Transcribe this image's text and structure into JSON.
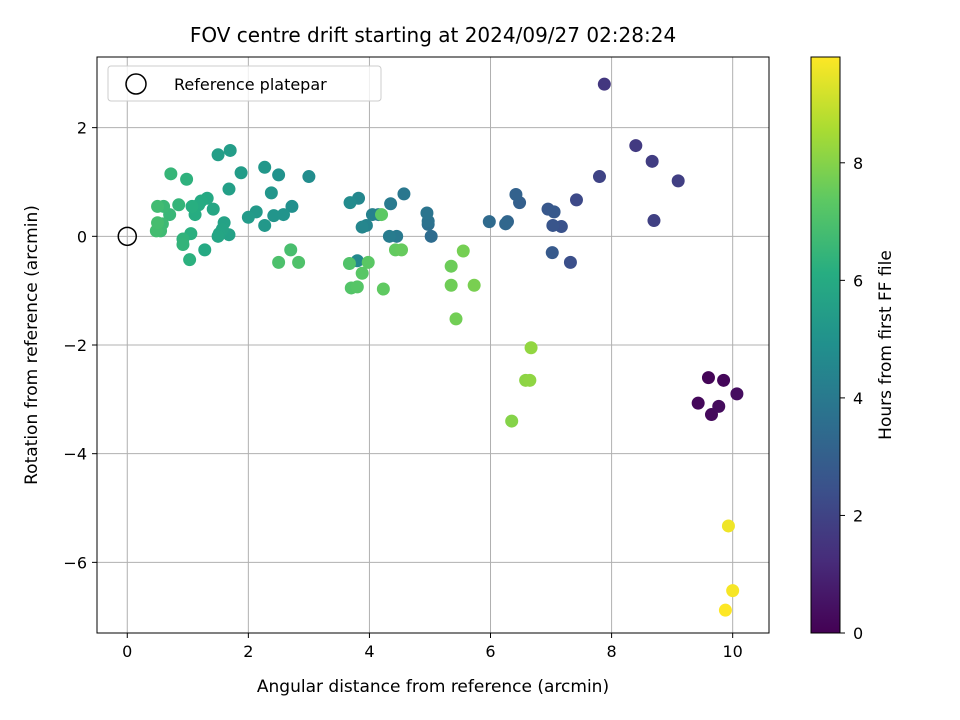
{
  "chart_data": {
    "type": "scatter",
    "title": "FOV centre drift starting at 2024/09/27 02:28:24",
    "xlabel": "Angular distance from reference (arcmin)",
    "ylabel": "Rotation from reference (arcmin)",
    "xlim": [
      -0.5,
      10.6
    ],
    "ylim": [
      -7.3,
      3.3
    ],
    "xticks": [
      0,
      2,
      4,
      6,
      8,
      10
    ],
    "yticks": [
      2,
      0,
      -2,
      -4,
      -6
    ],
    "xtick_labels": [
      "0",
      "2",
      "4",
      "6",
      "8",
      "10"
    ],
    "ytick_labels": [
      "2",
      "0",
      "−2",
      "−4",
      "−6"
    ],
    "grid": true,
    "legend": {
      "label": "Reference platepar",
      "placement": "top-left",
      "marker": "open-circle"
    },
    "reference_point": {
      "x": 0,
      "y": 0
    },
    "colorbar": {
      "label": "Hours from first FF file",
      "colormap": "viridis",
      "range": [
        0,
        9.8
      ],
      "ticks": [
        0,
        2,
        4,
        6,
        8
      ],
      "tick_labels": [
        "0",
        "2",
        "4",
        "6",
        "8"
      ]
    },
    "points": [
      {
        "x": 9.6,
        "y": -2.6,
        "c": 0.1
      },
      {
        "x": 9.85,
        "y": -2.65,
        "c": 0.15
      },
      {
        "x": 9.43,
        "y": -3.07,
        "c": 0.2
      },
      {
        "x": 9.65,
        "y": -3.28,
        "c": 0.25
      },
      {
        "x": 9.77,
        "y": -3.13,
        "c": 0.3
      },
      {
        "x": 10.07,
        "y": -2.9,
        "c": 0.35
      },
      {
        "x": 7.88,
        "y": 2.8,
        "c": 1.6
      },
      {
        "x": 8.4,
        "y": 1.67,
        "c": 1.7
      },
      {
        "x": 8.67,
        "y": 1.38,
        "c": 1.8
      },
      {
        "x": 9.1,
        "y": 1.02,
        "c": 1.85
      },
      {
        "x": 8.7,
        "y": 0.29,
        "c": 1.9
      },
      {
        "x": 7.8,
        "y": 1.1,
        "c": 2.0
      },
      {
        "x": 7.42,
        "y": 0.67,
        "c": 2.2
      },
      {
        "x": 7.32,
        "y": -0.48,
        "c": 2.4
      },
      {
        "x": 7.17,
        "y": 0.18,
        "c": 2.5
      },
      {
        "x": 7.03,
        "y": 0.2,
        "c": 2.6
      },
      {
        "x": 6.95,
        "y": 0.5,
        "c": 2.7
      },
      {
        "x": 7.05,
        "y": 0.45,
        "c": 2.75
      },
      {
        "x": 7.02,
        "y": -0.3,
        "c": 2.8
      },
      {
        "x": 6.48,
        "y": 0.62,
        "c": 3.0
      },
      {
        "x": 6.42,
        "y": 0.77,
        "c": 3.1
      },
      {
        "x": 6.28,
        "y": 0.27,
        "c": 3.2
      },
      {
        "x": 6.25,
        "y": 0.23,
        "c": 3.3
      },
      {
        "x": 5.98,
        "y": 0.27,
        "c": 3.4
      },
      {
        "x": 5.02,
        "y": 0.0,
        "c": 3.5
      },
      {
        "x": 4.97,
        "y": 0.22,
        "c": 3.6
      },
      {
        "x": 4.97,
        "y": 0.28,
        "c": 3.7
      },
      {
        "x": 4.95,
        "y": 0.43,
        "c": 3.8
      },
      {
        "x": 4.57,
        "y": 0.78,
        "c": 3.9
      },
      {
        "x": 4.45,
        "y": 0.0,
        "c": 4.0
      },
      {
        "x": 4.35,
        "y": 0.6,
        "c": 4.05
      },
      {
        "x": 4.33,
        "y": 0.0,
        "c": 4.1
      },
      {
        "x": 4.15,
        "y": 0.4,
        "c": 4.2
      },
      {
        "x": 4.05,
        "y": 0.4,
        "c": 4.3
      },
      {
        "x": 3.95,
        "y": 0.2,
        "c": 4.4
      },
      {
        "x": 3.88,
        "y": 0.17,
        "c": 4.5
      },
      {
        "x": 3.82,
        "y": 0.7,
        "c": 4.55
      },
      {
        "x": 3.8,
        "y": -0.45,
        "c": 4.6
      },
      {
        "x": 3.68,
        "y": 0.62,
        "c": 4.7
      },
      {
        "x": 3.0,
        "y": 1.1,
        "c": 4.8
      },
      {
        "x": 2.72,
        "y": 0.55,
        "c": 4.9
      },
      {
        "x": 2.5,
        "y": 1.13,
        "c": 5.0
      },
      {
        "x": 2.58,
        "y": 0.4,
        "c": 5.05
      },
      {
        "x": 2.42,
        "y": 0.38,
        "c": 5.1
      },
      {
        "x": 2.38,
        "y": 0.8,
        "c": 5.15
      },
      {
        "x": 2.27,
        "y": 1.27,
        "c": 5.2
      },
      {
        "x": 2.27,
        "y": 0.2,
        "c": 5.25
      },
      {
        "x": 2.13,
        "y": 0.45,
        "c": 5.3
      },
      {
        "x": 2.0,
        "y": 0.35,
        "c": 5.35
      },
      {
        "x": 1.88,
        "y": 1.17,
        "c": 5.4
      },
      {
        "x": 1.7,
        "y": 1.58,
        "c": 5.45
      },
      {
        "x": 1.5,
        "y": 1.5,
        "c": 5.5
      },
      {
        "x": 1.68,
        "y": 0.87,
        "c": 5.55
      },
      {
        "x": 1.68,
        "y": 0.03,
        "c": 5.6
      },
      {
        "x": 1.6,
        "y": 0.25,
        "c": 5.65
      },
      {
        "x": 1.57,
        "y": 0.13,
        "c": 5.7
      },
      {
        "x": 1.52,
        "y": 0.05,
        "c": 5.75
      },
      {
        "x": 1.5,
        "y": 0.0,
        "c": 5.8
      },
      {
        "x": 1.42,
        "y": 0.5,
        "c": 5.85
      },
      {
        "x": 1.32,
        "y": 0.7,
        "c": 5.9
      },
      {
        "x": 1.28,
        "y": -0.25,
        "c": 5.95
      },
      {
        "x": 1.22,
        "y": 0.65,
        "c": 6.0
      },
      {
        "x": 1.18,
        "y": 0.58,
        "c": 6.05
      },
      {
        "x": 1.12,
        "y": 0.4,
        "c": 6.1
      },
      {
        "x": 1.07,
        "y": 0.55,
        "c": 6.15
      },
      {
        "x": 1.05,
        "y": 0.05,
        "c": 6.2
      },
      {
        "x": 1.03,
        "y": -0.43,
        "c": 6.25
      },
      {
        "x": 0.98,
        "y": 1.05,
        "c": 6.3
      },
      {
        "x": 0.92,
        "y": -0.05,
        "c": 6.35
      },
      {
        "x": 0.92,
        "y": -0.15,
        "c": 6.4
      },
      {
        "x": 0.85,
        "y": 0.58,
        "c": 6.45
      },
      {
        "x": 0.72,
        "y": 1.15,
        "c": 6.5
      },
      {
        "x": 0.7,
        "y": 0.4,
        "c": 6.55
      },
      {
        "x": 0.6,
        "y": 0.55,
        "c": 6.6
      },
      {
        "x": 0.58,
        "y": 0.23,
        "c": 6.65
      },
      {
        "x": 0.55,
        "y": 0.1,
        "c": 6.7
      },
      {
        "x": 0.5,
        "y": 0.55,
        "c": 6.75
      },
      {
        "x": 0.48,
        "y": 0.1,
        "c": 6.8
      },
      {
        "x": 0.5,
        "y": 0.25,
        "c": 6.85
      },
      {
        "x": 2.7,
        "y": -0.25,
        "c": 6.9
      },
      {
        "x": 2.5,
        "y": -0.48,
        "c": 7.0
      },
      {
        "x": 2.83,
        "y": -0.48,
        "c": 7.05
      },
      {
        "x": 3.67,
        "y": -0.5,
        "c": 7.1
      },
      {
        "x": 3.7,
        "y": -0.95,
        "c": 7.15
      },
      {
        "x": 3.8,
        "y": -0.93,
        "c": 7.2
      },
      {
        "x": 3.88,
        "y": -0.68,
        "c": 7.25
      },
      {
        "x": 3.98,
        "y": -0.48,
        "c": 7.3
      },
      {
        "x": 4.2,
        "y": 0.4,
        "c": 7.35
      },
      {
        "x": 4.23,
        "y": -0.97,
        "c": 7.4
      },
      {
        "x": 4.43,
        "y": -0.25,
        "c": 7.45
      },
      {
        "x": 4.53,
        "y": -0.25,
        "c": 7.5
      },
      {
        "x": 5.35,
        "y": -0.55,
        "c": 7.6
      },
      {
        "x": 5.35,
        "y": -0.9,
        "c": 7.65
      },
      {
        "x": 5.43,
        "y": -1.52,
        "c": 7.7
      },
      {
        "x": 5.55,
        "y": -0.27,
        "c": 7.75
      },
      {
        "x": 5.73,
        "y": -0.9,
        "c": 7.8
      },
      {
        "x": 6.35,
        "y": -3.4,
        "c": 8.0
      },
      {
        "x": 6.58,
        "y": -2.65,
        "c": 8.1
      },
      {
        "x": 6.65,
        "y": -2.65,
        "c": 8.15
      },
      {
        "x": 6.67,
        "y": -2.05,
        "c": 8.2
      },
      {
        "x": 9.93,
        "y": -5.33,
        "c": 9.6
      },
      {
        "x": 10.0,
        "y": -6.52,
        "c": 9.7
      },
      {
        "x": 9.88,
        "y": -6.88,
        "c": 9.8
      }
    ]
  }
}
